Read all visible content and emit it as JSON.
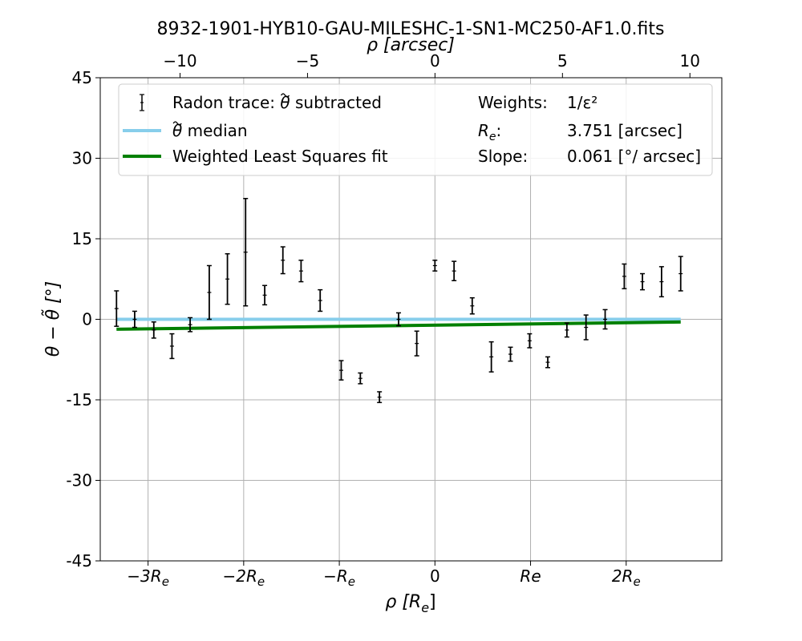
{
  "chart_data": {
    "type": "scatter",
    "title": "8932-1901-HYB10-GAU-MILESHC-1-SN1-MC250-AF1.0.fits",
    "xlabel": "ρ [R",
    "xlabel_sub": "e",
    "xlabel_close": "]",
    "ylabel": "θ − θ̃ [°]",
    "top_xlabel": "ρ [arcsec]",
    "xlim": [
      -3.5,
      3.0
    ],
    "ylim": [
      -45,
      45
    ],
    "top_xlim": [
      -13.13,
      11.25
    ],
    "grid": true,
    "legend_position": "upper center",
    "y_ticks": [
      {
        "v": 45,
        "label": "45"
      },
      {
        "v": 30,
        "label": "30"
      },
      {
        "v": 15,
        "label": "15"
      },
      {
        "v": 0,
        "label": "0"
      },
      {
        "v": -15,
        "label": "-15"
      },
      {
        "v": -30,
        "label": "-30"
      },
      {
        "v": -45,
        "label": "-45"
      }
    ],
    "x_ticks": [
      {
        "v": -3,
        "pre": "−3R",
        "sub": "e"
      },
      {
        "v": -2,
        "pre": "−2R",
        "sub": "e"
      },
      {
        "v": -1,
        "pre": "−R",
        "sub": "e"
      },
      {
        "v": 0,
        "pre": "0",
        "sub": ""
      },
      {
        "v": 1,
        "pre": "Re",
        "sub": ""
      },
      {
        "v": 2,
        "pre": "2R",
        "sub": "e"
      }
    ],
    "top_ticks": [
      {
        "v": -10,
        "label": "−10"
      },
      {
        "v": -5,
        "label": "−5"
      },
      {
        "v": 0,
        "label": "0"
      },
      {
        "v": 5,
        "label": "5"
      },
      {
        "v": 10,
        "label": "10"
      }
    ],
    "series": [
      {
        "name": "Radon trace: θ̃ subtracted",
        "kind": "errorbar",
        "color": "#000000",
        "points": [
          {
            "x": -3.33,
            "y": 2.0,
            "err": 3.3
          },
          {
            "x": -3.14,
            "y": 0.0,
            "err": 1.5
          },
          {
            "x": -2.94,
            "y": -2.0,
            "err": 1.5
          },
          {
            "x": -2.75,
            "y": -5.0,
            "err": 2.3
          },
          {
            "x": -2.56,
            "y": -1.0,
            "err": 1.3
          },
          {
            "x": -2.36,
            "y": 5.0,
            "err": 5.0
          },
          {
            "x": -2.17,
            "y": 7.5,
            "err": 4.7
          },
          {
            "x": -1.98,
            "y": 12.5,
            "err": 10.0
          },
          {
            "x": -1.78,
            "y": 4.5,
            "err": 1.8
          },
          {
            "x": -1.59,
            "y": 11.0,
            "err": 2.5
          },
          {
            "x": -1.4,
            "y": 9.0,
            "err": 2.0
          },
          {
            "x": -1.2,
            "y": 3.5,
            "err": 2.0
          },
          {
            "x": -0.98,
            "y": -9.5,
            "err": 1.8
          },
          {
            "x": -0.78,
            "y": -11.0,
            "err": 1.0
          },
          {
            "x": -0.58,
            "y": -14.5,
            "err": 1.0
          },
          {
            "x": -0.38,
            "y": 0.0,
            "err": 1.2
          },
          {
            "x": -0.19,
            "y": -4.5,
            "err": 2.3
          },
          {
            "x": 0.0,
            "y": 10.0,
            "err": 1.0
          },
          {
            "x": 0.2,
            "y": 9.0,
            "err": 1.8
          },
          {
            "x": 0.39,
            "y": 2.5,
            "err": 1.5
          },
          {
            "x": 0.59,
            "y": -7.0,
            "err": 2.8
          },
          {
            "x": 0.79,
            "y": -6.5,
            "err": 1.3
          },
          {
            "x": 0.99,
            "y": -4.0,
            "err": 1.3
          },
          {
            "x": 1.18,
            "y": -8.0,
            "err": 1.0
          },
          {
            "x": 1.38,
            "y": -2.0,
            "err": 1.3
          },
          {
            "x": 1.58,
            "y": -1.5,
            "err": 2.3
          },
          {
            "x": 1.78,
            "y": 0.0,
            "err": 1.8
          },
          {
            "x": 1.98,
            "y": 8.0,
            "err": 2.3
          },
          {
            "x": 2.17,
            "y": 7.0,
            "err": 1.5
          },
          {
            "x": 2.37,
            "y": 7.0,
            "err": 2.8
          },
          {
            "x": 2.57,
            "y": 8.5,
            "err": 3.2
          }
        ]
      },
      {
        "name": "θ̃ median",
        "kind": "line",
        "color": "#87ceeb",
        "x": [
          -3.33,
          2.57
        ],
        "y": [
          0.0,
          0.0
        ]
      },
      {
        "name": "Weighted Least Squares fit",
        "kind": "line",
        "color": "#008000",
        "x": [
          -3.33,
          2.57
        ],
        "y": [
          -1.85,
          -0.5
        ]
      }
    ],
    "legend": {
      "entries": [
        {
          "symbol": "errorbar",
          "pre": "Radon trace: ",
          "tilde": "θ",
          "post": " subtracted"
        },
        {
          "symbol": "line-skyblue",
          "pre": "",
          "tilde": "θ",
          "post": " median"
        },
        {
          "symbol": "line-green",
          "pre": "Weighted Least Squares fit",
          "tilde": "",
          "post": ""
        }
      ],
      "info": [
        {
          "key": "Weights:",
          "value": "1/ε²"
        },
        {
          "key": "R",
          "key_sub": "e",
          "key_after": ":",
          "value": "3.751 [arcsec]"
        },
        {
          "key": "Slope:",
          "value": "0.061 [°/ arcsec]"
        }
      ]
    }
  }
}
